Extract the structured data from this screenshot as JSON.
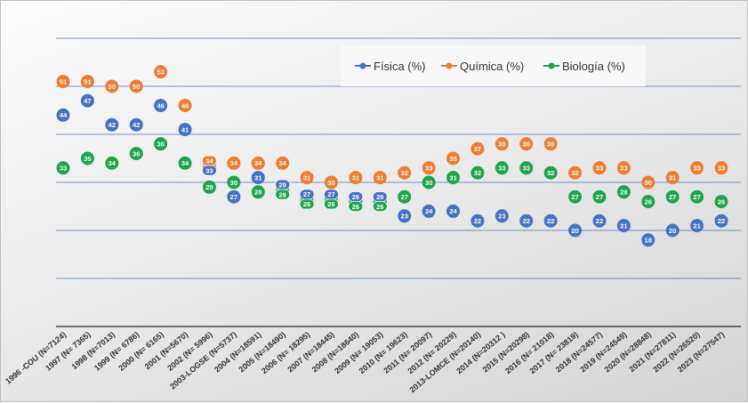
{
  "chart_data": {
    "type": "line",
    "title": "",
    "xlabel": "",
    "ylabel": "",
    "ylim": [
      0,
      60
    ],
    "grid": true,
    "legend_position": "top-center",
    "markers_only": true,
    "data_labels": true,
    "categories": [
      "1996 -COU (N=7124)",
      "1997 (N= 7365)",
      "1998 (N=7013)",
      "1999 (N= 6786)",
      "2000 (N= 6165)",
      "2001 (N=5670)",
      "2002 (N= 5996)",
      "2003-LOGSE (N=5737)",
      "2004 (N=18591)",
      "2005 (N=18490)",
      "2006 (N= 18295)",
      "2007 (N=18445)",
      "2008 (N=18640)",
      "2009 (N= 19053)",
      "2010 (N= 19623)",
      "2011 (N= 20097)",
      "2012 (N= 20229)",
      "2013-LOMCE (N=20140)",
      "2014 (N=20312 )",
      "2015 (N=20298)",
      "2016 (N= 21018)",
      "2017 (N= 23819)",
      "2018 (N=24577)",
      "2019 (N=24549)",
      "2020 (N=28848)",
      "2021 (N=27811)",
      "2022 (N=26520)",
      "2023 (N=27547)"
    ],
    "series": [
      {
        "name": "Física (%)",
        "color": "#4472c4",
        "values": [
          44,
          47,
          42,
          42,
          46,
          41,
          33,
          27,
          31,
          29,
          27,
          27,
          26,
          26,
          23,
          24,
          24,
          22,
          23,
          22,
          22,
          20,
          22,
          21,
          18,
          20,
          21,
          22
        ]
      },
      {
        "name": "Química (%)",
        "color": "#ed7d31",
        "values": [
          51,
          51,
          50,
          50,
          53,
          46,
          34,
          34,
          34,
          34,
          31,
          30,
          31,
          31,
          32,
          33,
          35,
          37,
          38,
          38,
          38,
          32,
          33,
          33,
          30,
          31,
          33,
          33
        ]
      },
      {
        "name": "Biología (%)",
        "color": "#1ea54c",
        "values": [
          33,
          35,
          34,
          36,
          38,
          34,
          29,
          30,
          28,
          28,
          26,
          26,
          26,
          26,
          27,
          30,
          31,
          32,
          33,
          33,
          32,
          27,
          27,
          28,
          26,
          27,
          27,
          26
        ]
      }
    ]
  }
}
